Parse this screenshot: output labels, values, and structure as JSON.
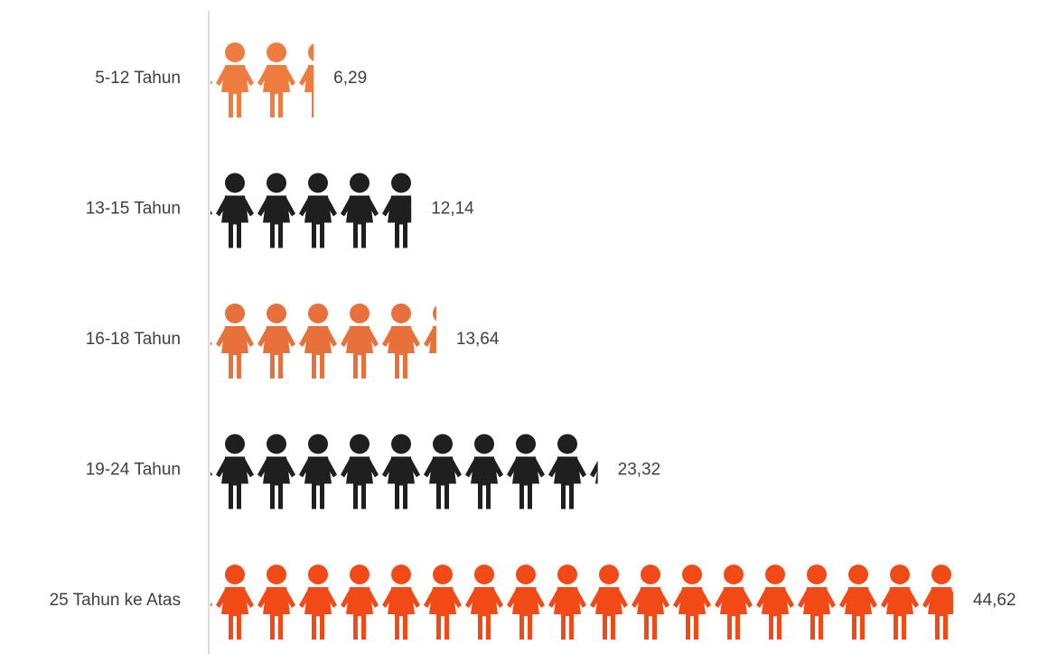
{
  "chart_data": {
    "type": "pictograph-bar",
    "categories": [
      "5-12 Tahun",
      "13-15 Tahun",
      "16-18 Tahun",
      "19-24 Tahun",
      "25 Tahun ke Atas"
    ],
    "values": [
      6.29,
      12.14,
      13.64,
      23.32,
      44.62
    ],
    "value_labels": [
      "6,29",
      "12,14",
      "13,64",
      "23,32",
      "44,62"
    ],
    "colors": [
      "#f07b3f",
      "#1f1f1f",
      "#e8703a",
      "#1f1f1f",
      "#f24a17"
    ]
  }
}
